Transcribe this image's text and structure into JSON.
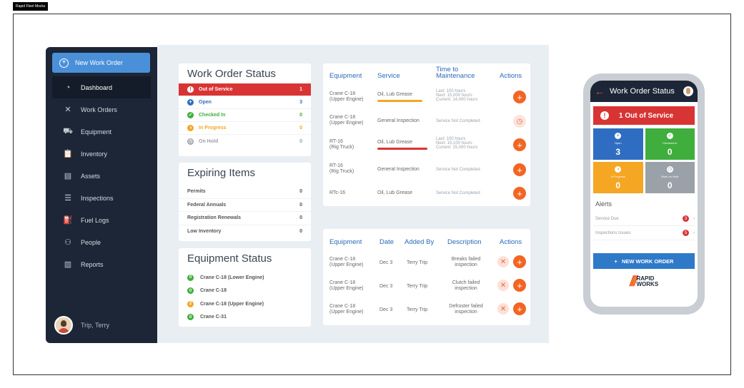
{
  "tag": "Rapid Fleet Mocks",
  "colors": {
    "red": "#d93434",
    "blue": "#2f6dc2",
    "green": "#3fae3c",
    "orange": "#f5a623",
    "gray": "#9aa1a9",
    "accent": "#f26522"
  },
  "sidebar": {
    "new_work_order": "New Work Order",
    "items": [
      {
        "label": "Dashboard",
        "icon": "dashboard-icon"
      },
      {
        "label": "Work Orders",
        "icon": "tools-icon"
      },
      {
        "label": "Equipment",
        "icon": "truck-icon"
      },
      {
        "label": "Inventory",
        "icon": "clipboard-icon"
      },
      {
        "label": "Assets",
        "icon": "briefcase-icon"
      },
      {
        "label": "Inspections",
        "icon": "checklist-icon"
      },
      {
        "label": "Fuel Logs",
        "icon": "fuel-icon"
      },
      {
        "label": "People",
        "icon": "people-icon"
      },
      {
        "label": "Reports",
        "icon": "chart-icon"
      }
    ],
    "user": "Trip, Terry"
  },
  "work_order_status": {
    "title": "Work Order Status",
    "rows": [
      {
        "label": "Out of Service",
        "count": "1"
      },
      {
        "label": "Open",
        "count": "3"
      },
      {
        "label": "Checked In",
        "count": "0"
      },
      {
        "label": "In Progress",
        "count": "0"
      },
      {
        "label": "On Hold",
        "count": "0"
      }
    ]
  },
  "expiring_items": {
    "title": "Expiring Items",
    "rows": [
      {
        "label": "Permits",
        "count": "0"
      },
      {
        "label": "Federal Annuals",
        "count": "0"
      },
      {
        "label": "Registration Renewals",
        "count": "0"
      },
      {
        "label": "Low Inventory",
        "count": "0"
      }
    ]
  },
  "equipment_status": {
    "title": "Equipment Status",
    "rows": [
      {
        "badge": "0",
        "label": "Crane C-18 (Lower Engine)"
      },
      {
        "badge": "0",
        "label": "Crane C-18"
      },
      {
        "badge": "2",
        "label": "Crane C-18 (Upper Engine)"
      },
      {
        "badge": "0",
        "label": "Crane C-31"
      }
    ]
  },
  "maintenance": {
    "headers": {
      "equipment": "Equipment",
      "service": "Service",
      "time": "Time to Maintenance",
      "actions": "Actions"
    },
    "rows": [
      {
        "eq1": "Crane C-18",
        "eq2": "(Upper Engine)",
        "service": "Oil, Lub Grease",
        "t1": "Last: 100 hours",
        "t2": "Next: 15,000 hours",
        "t3": "Current: 14,000 hours",
        "progress": 0.9
      },
      {
        "eq1": "Crane C-18",
        "eq2": "(Upper Engine)",
        "service": "General Inspection",
        "t1": "Service Not Completed"
      },
      {
        "eq1": "RT-16",
        "eq2": "(Rig Truck)",
        "service": "Oil, Lub Grease",
        "t1": "Last: 100 hours",
        "t2": "Next: 15,100 hours",
        "t3": "Current: 15,000 hours",
        "progress": 1.0
      },
      {
        "eq1": "RT-16",
        "eq2": "(Rig Truck)",
        "service": "General Inspection",
        "t1": "Service Not Completed"
      },
      {
        "eq1": "RTc-16",
        "eq2": "",
        "service": "Oil, Lub Grease",
        "t1": "Service Not Completed"
      }
    ]
  },
  "issues": {
    "headers": {
      "equipment": "Equipment",
      "date": "Date",
      "added_by": "Added By",
      "description": "Description",
      "actions": "Actions"
    },
    "rows": [
      {
        "eq1": "Crane C-18",
        "eq2": "(Upper Engine)",
        "date": "Dec 3",
        "by": "Terry Trip",
        "d1": "Breaks failed",
        "d2": "inspection"
      },
      {
        "eq1": "Crane C-18",
        "eq2": "(Upper Engine)",
        "date": "Dec 3",
        "by": "Terry Trip",
        "d1": "Clutch failed",
        "d2": "inspection"
      },
      {
        "eq1": "Crane C-18",
        "eq2": "(Upper Engine)",
        "date": "Dec 3",
        "by": "Terry Trip",
        "d1": "Defroster failed",
        "d2": "inspection"
      }
    ]
  },
  "phone": {
    "title": "Work Order Status",
    "alert": "1 Out of Service",
    "tiles": [
      {
        "label": "Open",
        "value": "3"
      },
      {
        "label": "Checked In",
        "value": "0"
      },
      {
        "label": "In Progress",
        "value": "0"
      },
      {
        "label": "Work on Hold",
        "value": "0"
      }
    ],
    "alerts_title": "Alerts",
    "alerts": [
      {
        "label": "Service Due",
        "count": "3"
      },
      {
        "label": "Inspections Issues",
        "count": "5"
      }
    ],
    "new_button": "NEW WORK ORDER",
    "logo_line1": "RAPID",
    "logo_line2": "WORKS"
  }
}
